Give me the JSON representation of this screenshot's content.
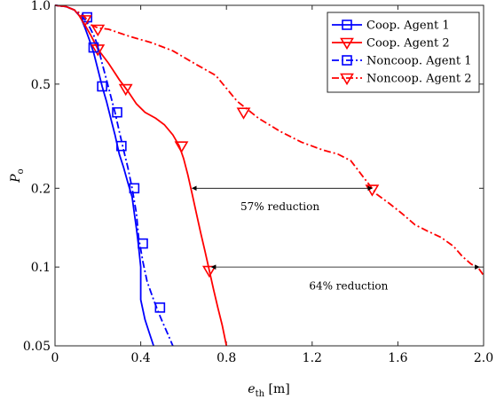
{
  "chart_data": {
    "type": "line",
    "title": "",
    "xlabel": "e",
    "xlabel_sub": "th",
    "xlabel_unit": " [m]",
    "ylabel": "P",
    "ylabel_sub": "o",
    "xlim": [
      0,
      2.0
    ],
    "ylim": [
      0.05,
      1.0
    ],
    "yscale": "log",
    "grid": false,
    "legend_position": "top-right",
    "xticks": [
      0,
      0.4,
      0.8,
      1.2,
      1.6,
      2.0
    ],
    "xtick_labels": [
      "0",
      "0.4",
      "0.8",
      "1.2",
      "1.6",
      "2.0"
    ],
    "yticks": [
      0.05,
      0.1,
      0.2,
      0.5,
      1.0
    ],
    "ytick_labels": [
      "0.05",
      "0.1",
      "0.2",
      "0.5",
      "1.0"
    ],
    "series": [
      {
        "name": "Coop. Agent 1",
        "color": "#0000ff",
        "dash": "solid",
        "marker": "square",
        "points": [
          [
            0,
            1.0
          ],
          [
            0.05,
            0.99
          ],
          [
            0.09,
            0.96
          ],
          [
            0.12,
            0.9
          ],
          [
            0.14,
            0.82
          ],
          [
            0.16,
            0.74
          ],
          [
            0.18,
            0.66
          ],
          [
            0.2,
            0.57
          ],
          [
            0.22,
            0.49
          ],
          [
            0.24,
            0.43
          ],
          [
            0.26,
            0.37
          ],
          [
            0.28,
            0.32
          ],
          [
            0.3,
            0.27
          ],
          [
            0.32,
            0.24
          ],
          [
            0.34,
            0.21
          ],
          [
            0.36,
            0.185
          ],
          [
            0.37,
            0.16
          ],
          [
            0.38,
            0.14
          ],
          [
            0.39,
            0.12
          ],
          [
            0.4,
            0.1
          ],
          [
            0.4,
            0.075
          ],
          [
            0.42,
            0.063
          ],
          [
            0.44,
            0.056
          ],
          [
            0.46,
            0.05
          ]
        ],
        "markers": [
          [
            0.15,
            0.9
          ],
          [
            0.22,
            0.49
          ],
          [
            0.31,
            0.29
          ],
          [
            0.41,
            0.123
          ]
        ]
      },
      {
        "name": "Coop. Agent 2",
        "color": "#ff0000",
        "dash": "solid",
        "marker": "triangle-down",
        "points": [
          [
            0,
            1.0
          ],
          [
            0.05,
            0.99
          ],
          [
            0.09,
            0.96
          ],
          [
            0.12,
            0.9
          ],
          [
            0.14,
            0.84
          ],
          [
            0.17,
            0.76
          ],
          [
            0.2,
            0.68
          ],
          [
            0.25,
            0.6
          ],
          [
            0.3,
            0.52
          ],
          [
            0.34,
            0.47
          ],
          [
            0.38,
            0.42
          ],
          [
            0.42,
            0.39
          ],
          [
            0.47,
            0.37
          ],
          [
            0.51,
            0.35
          ],
          [
            0.55,
            0.32
          ],
          [
            0.58,
            0.29
          ],
          [
            0.6,
            0.26
          ],
          [
            0.62,
            0.225
          ],
          [
            0.64,
            0.19
          ],
          [
            0.66,
            0.16
          ],
          [
            0.68,
            0.135
          ],
          [
            0.7,
            0.115
          ],
          [
            0.72,
            0.097
          ],
          [
            0.74,
            0.082
          ],
          [
            0.76,
            0.07
          ],
          [
            0.78,
            0.06
          ],
          [
            0.8,
            0.05
          ]
        ],
        "markers": [
          [
            0.2,
            0.68
          ],
          [
            0.33,
            0.48
          ],
          [
            0.59,
            0.29
          ],
          [
            0.72,
            0.097
          ]
        ]
      },
      {
        "name": "Noncoop. Agent 1",
        "color": "#0000ff",
        "dash": "dashdot",
        "marker": "square",
        "points": [
          [
            0,
            1.0
          ],
          [
            0.05,
            0.99
          ],
          [
            0.09,
            0.96
          ],
          [
            0.12,
            0.92
          ],
          [
            0.15,
            0.86
          ],
          [
            0.18,
            0.77
          ],
          [
            0.2,
            0.7
          ],
          [
            0.22,
            0.6
          ],
          [
            0.24,
            0.52
          ],
          [
            0.26,
            0.45
          ],
          [
            0.28,
            0.39
          ],
          [
            0.3,
            0.33
          ],
          [
            0.32,
            0.28
          ],
          [
            0.34,
            0.24
          ],
          [
            0.36,
            0.2
          ],
          [
            0.38,
            0.16
          ],
          [
            0.39,
            0.13
          ],
          [
            0.41,
            0.105
          ],
          [
            0.43,
            0.088
          ],
          [
            0.46,
            0.075
          ],
          [
            0.48,
            0.068
          ],
          [
            0.5,
            0.062
          ],
          [
            0.52,
            0.057
          ],
          [
            0.55,
            0.05
          ]
        ],
        "markers": [
          [
            0.18,
            0.69
          ],
          [
            0.29,
            0.39
          ],
          [
            0.37,
            0.2
          ],
          [
            0.49,
            0.07
          ]
        ]
      },
      {
        "name": "Noncoop. Agent 2",
        "color": "#ff0000",
        "dash": "dashdot",
        "marker": "triangle-down",
        "points": [
          [
            0,
            1.0
          ],
          [
            0.05,
            0.99
          ],
          [
            0.09,
            0.96
          ],
          [
            0.13,
            0.92
          ],
          [
            0.15,
            0.88
          ],
          [
            0.17,
            0.84
          ],
          [
            0.2,
            0.82
          ],
          [
            0.25,
            0.81
          ],
          [
            0.35,
            0.76
          ],
          [
            0.45,
            0.72
          ],
          [
            0.55,
            0.67
          ],
          [
            0.65,
            0.6
          ],
          [
            0.75,
            0.54
          ],
          [
            0.85,
            0.43
          ],
          [
            0.95,
            0.37
          ],
          [
            1.05,
            0.33
          ],
          [
            1.15,
            0.3
          ],
          [
            1.25,
            0.28
          ],
          [
            1.32,
            0.27
          ],
          [
            1.38,
            0.255
          ],
          [
            1.44,
            0.22
          ],
          [
            1.5,
            0.19
          ],
          [
            1.56,
            0.175
          ],
          [
            1.62,
            0.16
          ],
          [
            1.68,
            0.145
          ],
          [
            1.74,
            0.137
          ],
          [
            1.8,
            0.13
          ],
          [
            1.86,
            0.12
          ],
          [
            1.9,
            0.11
          ],
          [
            1.94,
            0.103
          ],
          [
            1.98,
            0.098
          ],
          [
            2.0,
            0.093
          ]
        ],
        "markers": [
          [
            0.14,
            0.88
          ],
          [
            0.2,
            0.81
          ],
          [
            0.88,
            0.39
          ],
          [
            1.48,
            0.198
          ]
        ]
      }
    ],
    "annotations": [
      {
        "text": "57% reduction",
        "arrow_from": [
          0.64,
          0.2
        ],
        "arrow_to": [
          1.48,
          0.2
        ],
        "label_at": [
          1.05,
          0.165
        ]
      },
      {
        "text": "64% reduction",
        "arrow_from": [
          0.73,
          0.1
        ],
        "arrow_to": [
          1.98,
          0.1
        ],
        "label_at": [
          1.37,
          0.082
        ]
      }
    ]
  }
}
